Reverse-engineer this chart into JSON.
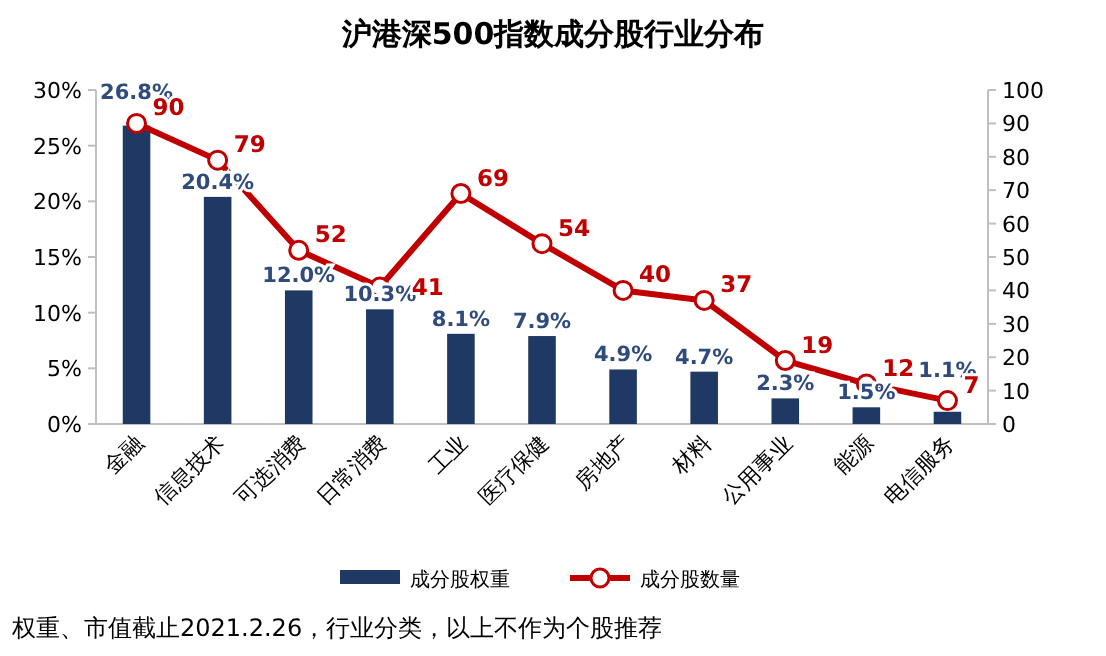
{
  "chart_data": {
    "type": "bar",
    "title": "沪港深500指数成分股行业分布",
    "categories": [
      "金融",
      "信息技术",
      "可选消费",
      "日常消费",
      "工业",
      "医疗保健",
      "房地产",
      "材料",
      "公用事业",
      "能源",
      "电信服务"
    ],
    "series": [
      {
        "name": "成分股权重",
        "type": "bar",
        "color": "#203864",
        "values": [
          26.8,
          20.4,
          12.0,
          10.3,
          8.1,
          7.9,
          4.9,
          4.7,
          2.3,
          1.5,
          1.1
        ],
        "value_labels": [
          "26.8%",
          "20.4%",
          "12.0%",
          "10.3%",
          "8.1%",
          "7.9%",
          "4.9%",
          "4.7%",
          "2.3%",
          "1.5%",
          "1.1%"
        ]
      },
      {
        "name": "成分股数量",
        "type": "line",
        "axis": "y2",
        "color": "#c00000",
        "marker": "circle",
        "data_labels": true,
        "values": [
          90,
          79,
          52,
          41,
          69,
          54,
          40,
          37,
          19,
          12,
          7
        ]
      }
    ],
    "ylim": [
      0,
      30
    ],
    "yticks": [
      {
        "value": 0,
        "label": "0%"
      },
      {
        "value": 5,
        "label": "5%"
      },
      {
        "value": 10,
        "label": "10%"
      },
      {
        "value": 15,
        "label": "15%"
      },
      {
        "value": 20,
        "label": "20%"
      },
      {
        "value": 25,
        "label": "25%"
      },
      {
        "value": 30,
        "label": "30%"
      }
    ],
    "y2lim": [
      0,
      100
    ],
    "y2ticks": [
      0,
      10,
      20,
      30,
      40,
      50,
      60,
      70,
      80,
      90,
      100
    ],
    "legend": "bottom",
    "grid": false,
    "annotations": [
      "权重、市值截止2021.2.26，行业分类，以上不作为个股推荐"
    ]
  }
}
